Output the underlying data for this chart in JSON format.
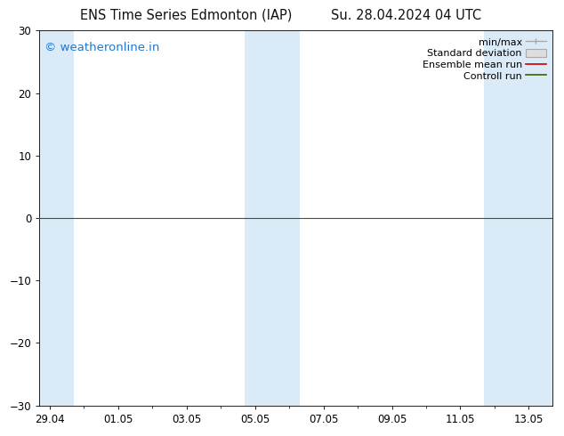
{
  "title_left": "ENS Time Series Edmonton (IAP)",
  "title_right": "Su. 28.04.2024 04 UTC",
  "ylim": [
    -30,
    30
  ],
  "yticks": [
    -30,
    -20,
    -10,
    0,
    10,
    20,
    30
  ],
  "xtick_labels": [
    "29.04",
    "01.05",
    "03.05",
    "05.05",
    "07.05",
    "09.05",
    "11.05",
    "13.05"
  ],
  "background_color": "#ffffff",
  "band_color": "#daeaf7",
  "watermark_text": "© weatheronline.in",
  "watermark_color": "#2277cc",
  "control_run_color": "#336600",
  "ensemble_mean_color": "#cc0000",
  "legend_items": [
    "min/max",
    "Standard deviation",
    "Ensemble mean run",
    "Controll run"
  ],
  "title_fontsize": 10.5,
  "tick_fontsize": 8.5,
  "legend_fontsize": 8,
  "watermark_fontsize": 9.5
}
